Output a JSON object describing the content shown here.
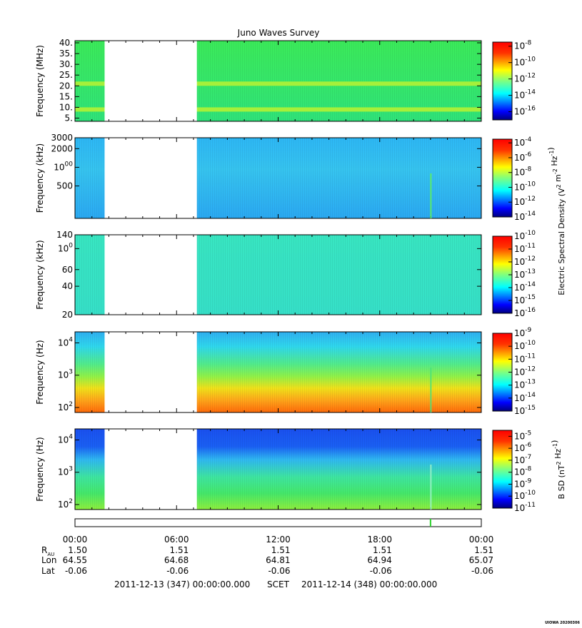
{
  "title": "Juno Waves Survey",
  "footer_stamp": "UIOWA 20200306",
  "colors": {
    "jet": [
      "#00007f",
      "#0000ff",
      "#007fff",
      "#00ffff",
      "#7fff7f",
      "#ffff00",
      "#ff7f00",
      "#ff0000",
      "#7f0000"
    ],
    "bg": "#ffffff",
    "axis": "#000000"
  },
  "chart_data": [
    {
      "type": "heatmap",
      "panel": "p1",
      "ylabel": "Frequency (MHz)",
      "yscale": "linear",
      "ylim": [
        3.5,
        41
      ],
      "yticks": [
        5,
        10,
        15,
        20,
        25,
        30,
        35,
        40
      ],
      "ytick_labels": [
        "5.",
        "10.",
        "15.",
        "20.",
        "25.",
        "30.",
        "35.",
        "40."
      ],
      "data_gaps_hours": [
        [
          1.75,
          7.2
        ]
      ],
      "bands": [
        {
          "y": 21,
          "level": "stronger"
        },
        {
          "y": 9,
          "level": "stronger"
        }
      ],
      "colorbar": {
        "labels": [
          "10-8",
          "10-10",
          "10-12",
          "10-14",
          "10-16"
        ],
        "range_exp": [
          -17,
          -7.5
        ]
      }
    },
    {
      "type": "heatmap",
      "panel": "p2",
      "ylabel": "Frequency (kHz)",
      "yscale": "log",
      "ylim": [
        150,
        3000
      ],
      "yticks": [
        500,
        1000,
        2000,
        3000
      ],
      "ytick_labels": [
        "500",
        "1000",
        "2000",
        "3000"
      ],
      "data_gaps_hours": [
        [
          1.75,
          7.2
        ]
      ],
      "colorbar": {
        "labels": [
          "10-4",
          "10-6",
          "10-8",
          "10-10",
          "10-12",
          "10-14"
        ],
        "range_exp": [
          -14,
          -3.5
        ]
      }
    },
    {
      "type": "heatmap",
      "panel": "p3",
      "ylabel": "Frequency (kHz)",
      "yscale": "log",
      "ylim": [
        20,
        140
      ],
      "yticks": [
        20,
        40,
        60,
        100,
        140
      ],
      "ytick_labels": [
        "20",
        "40",
        "60",
        "100",
        "140"
      ],
      "data_gaps_hours": [
        [
          1.75,
          7.2
        ]
      ],
      "colorbar": {
        "labels": [
          "10-10",
          "10-11",
          "10-12",
          "10-13",
          "10-14",
          "10-15",
          "10-16"
        ],
        "range_exp": [
          -16,
          -10
        ]
      }
    },
    {
      "type": "heatmap",
      "panel": "p4",
      "ylabel": "Frequency (Hz)",
      "yscale": "log",
      "ylim": [
        70,
        22000
      ],
      "yticks": [
        100,
        1000,
        10000
      ],
      "ytick_labels": [
        "10^2",
        "10^3",
        "10^4"
      ],
      "data_gaps_hours": [
        [
          1.75,
          7.2
        ]
      ],
      "colorbar": {
        "labels": [
          "10-9",
          "10-10",
          "10-11",
          "10-12",
          "10-13",
          "10-14",
          "10-15"
        ],
        "range_exp": [
          -15,
          -9
        ]
      }
    },
    {
      "type": "heatmap",
      "panel": "p5",
      "ylabel": "Frequency (Hz)",
      "yscale": "log",
      "ylim": [
        70,
        22000
      ],
      "yticks": [
        100,
        1000,
        10000
      ],
      "ytick_labels": [
        "10^2",
        "10^3",
        "10^4"
      ],
      "data_gaps_hours": [
        [
          1.75,
          7.2
        ]
      ],
      "colorbar": {
        "labels": [
          "10-5",
          "10-6",
          "10-7",
          "10-8",
          "10-9",
          "10-10",
          "10-11"
        ],
        "range_exp": [
          -11,
          -4.5
        ]
      }
    }
  ],
  "colorbar_titles": {
    "electric": "Electric Spectral Density (V^2 m^-2 Hz^-1)",
    "magnetic": "B SD (nT^2 Hz^-1)"
  },
  "time_axis": {
    "xlim_hours": [
      0,
      24
    ],
    "tick_labels": [
      "00:00",
      "06:00",
      "12:00",
      "18:00",
      "00:00"
    ],
    "event_marker_hour": 21.0
  },
  "ephemeris": {
    "row_labels": [
      "R_AU",
      "Lon",
      "Lat"
    ],
    "r_au": [
      "1.50",
      "1.51",
      "1.51",
      "1.51",
      "1.51"
    ],
    "lon": [
      "64.55",
      "64.68",
      "64.81",
      "64.94",
      "65.07"
    ],
    "lat": [
      "-0.06",
      "-0.06",
      "-0.06",
      "-0.06",
      "-0.06"
    ]
  },
  "range_text": {
    "start": "2011-12-13 (347) 00:00:00.000",
    "scet": "SCET",
    "end": "2011-12-14 (348) 00:00:00.000"
  }
}
